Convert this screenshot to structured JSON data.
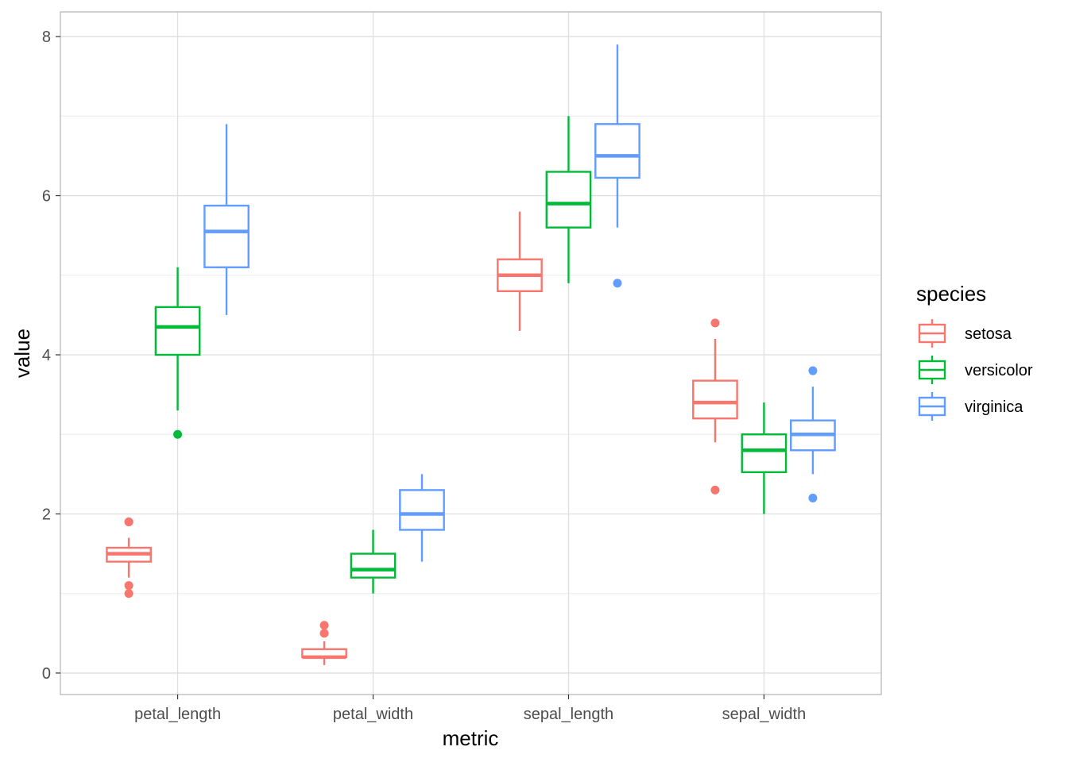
{
  "chart_data": {
    "type": "boxplot",
    "xlabel": "metric",
    "ylabel": "value",
    "ylim": [
      -0.27,
      8.31
    ],
    "y_ticks": [
      0,
      2,
      4,
      6,
      8
    ],
    "y_tick_labels": [
      "0",
      "2",
      "4",
      "6",
      "8"
    ],
    "categories": [
      "petal_length",
      "petal_width",
      "sepal_length",
      "sepal_width"
    ],
    "grid": true,
    "legend": {
      "title": "species",
      "position": "right",
      "entries": [
        "setosa",
        "versicolor",
        "virginica"
      ]
    },
    "series": [
      {
        "name": "setosa",
        "color": "#F8766D",
        "boxes": [
          {
            "category": "petal_length",
            "whisker_low": 1.2,
            "q1": 1.4,
            "median": 1.5,
            "q3": 1.575,
            "whisker_high": 1.7,
            "outliers": [
              1.9,
              1.9,
              1.1,
              1.0
            ]
          },
          {
            "category": "petal_width",
            "whisker_low": 0.1,
            "q1": 0.2,
            "median": 0.2,
            "q3": 0.3,
            "whisker_high": 0.4,
            "outliers": [
              0.6,
              0.5
            ]
          },
          {
            "category": "sepal_length",
            "whisker_low": 4.3,
            "q1": 4.8,
            "median": 5.0,
            "q3": 5.2,
            "whisker_high": 5.8,
            "outliers": []
          },
          {
            "category": "sepal_width",
            "whisker_low": 2.9,
            "q1": 3.2,
            "median": 3.4,
            "q3": 3.675,
            "whisker_high": 4.2,
            "outliers": [
              4.4,
              2.3
            ]
          }
        ]
      },
      {
        "name": "versicolor",
        "color": "#00BA38",
        "boxes": [
          {
            "category": "petal_length",
            "whisker_low": 3.3,
            "q1": 4.0,
            "median": 4.35,
            "q3": 4.6,
            "whisker_high": 5.1,
            "outliers": [
              3.0
            ]
          },
          {
            "category": "petal_width",
            "whisker_low": 1.0,
            "q1": 1.2,
            "median": 1.3,
            "q3": 1.5,
            "whisker_high": 1.8,
            "outliers": []
          },
          {
            "category": "sepal_length",
            "whisker_low": 4.9,
            "q1": 5.6,
            "median": 5.9,
            "q3": 6.3,
            "whisker_high": 7.0,
            "outliers": []
          },
          {
            "category": "sepal_width",
            "whisker_low": 2.0,
            "q1": 2.525,
            "median": 2.8,
            "q3": 3.0,
            "whisker_high": 3.4,
            "outliers": []
          }
        ]
      },
      {
        "name": "virginica",
        "color": "#619CFF",
        "boxes": [
          {
            "category": "petal_length",
            "whisker_low": 4.5,
            "q1": 5.1,
            "median": 5.55,
            "q3": 5.875,
            "whisker_high": 6.9,
            "outliers": []
          },
          {
            "category": "petal_width",
            "whisker_low": 1.4,
            "q1": 1.8,
            "median": 2.0,
            "q3": 2.3,
            "whisker_high": 2.5,
            "outliers": []
          },
          {
            "category": "sepal_length",
            "whisker_low": 5.6,
            "q1": 6.225,
            "median": 6.5,
            "q3": 6.9,
            "whisker_high": 7.9,
            "outliers": [
              4.9
            ]
          },
          {
            "category": "sepal_width",
            "whisker_low": 2.5,
            "q1": 2.8,
            "median": 3.0,
            "q3": 3.175,
            "whisker_high": 3.6,
            "outliers": [
              3.8,
              2.2
            ]
          }
        ]
      }
    ]
  }
}
